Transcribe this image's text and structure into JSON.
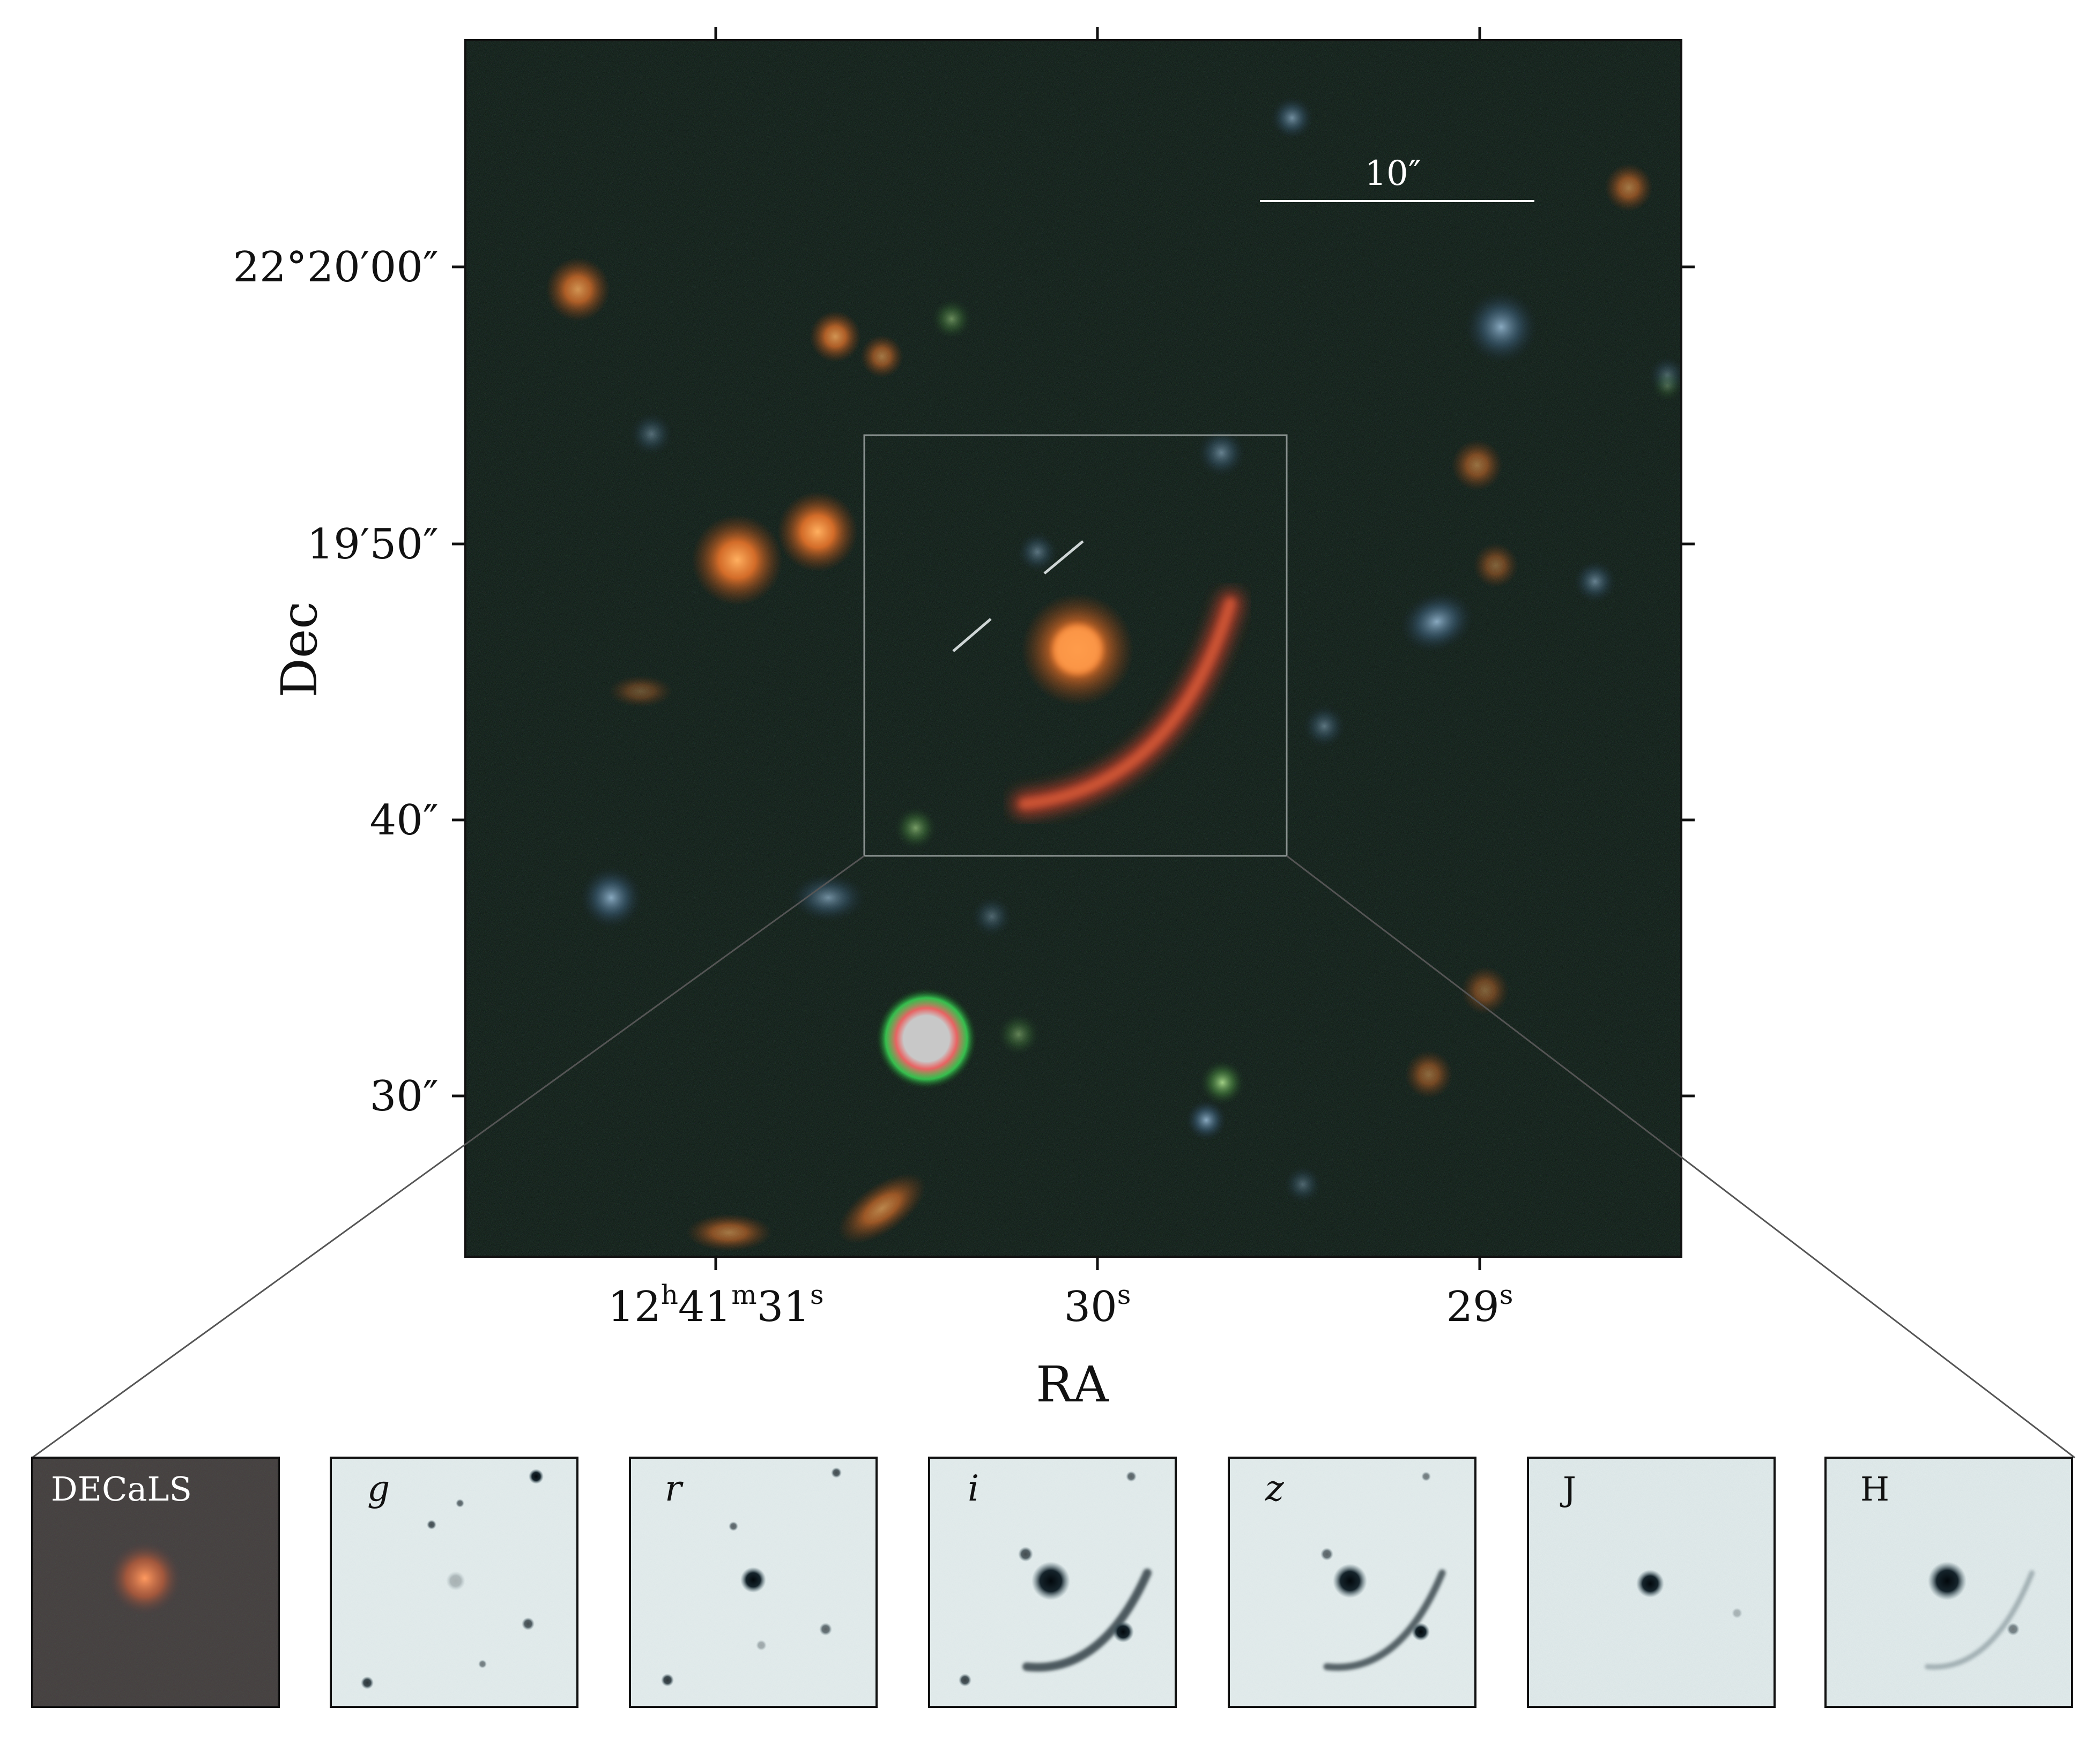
{
  "main_image": {
    "x_axis_label": "RA",
    "y_axis_label": "Dec",
    "x_ticks": [
      {
        "main": "12",
        "sup1": "h",
        "mid": "41",
        "sup2": "m",
        "end": "31",
        "sup3": "s"
      },
      {
        "main": "30",
        "sup1": "s"
      },
      {
        "main": "29",
        "sup1": "s"
      }
    ],
    "y_ticks": [
      "22°20′00″",
      "19′50″",
      "40″",
      "30″"
    ],
    "scale_bar_label": "10″"
  },
  "cutouts": [
    {
      "label": "DECaLS",
      "style": "color",
      "italic": false
    },
    {
      "label": "g",
      "style": "mono",
      "italic": true
    },
    {
      "label": "r",
      "style": "mono",
      "italic": true
    },
    {
      "label": "i",
      "style": "mono",
      "italic": true
    },
    {
      "label": "z",
      "style": "mono",
      "italic": true
    },
    {
      "label": "J",
      "style": "mono",
      "italic": false
    },
    {
      "label": "H",
      "style": "mono",
      "italic": false
    }
  ],
  "colors": {
    "sky_background": "#0a1510",
    "lens_galaxy": "#e8742a",
    "arc": "#c8402a",
    "cutout_background": "#e6eeee",
    "cutout_source": "#0b1a22"
  }
}
